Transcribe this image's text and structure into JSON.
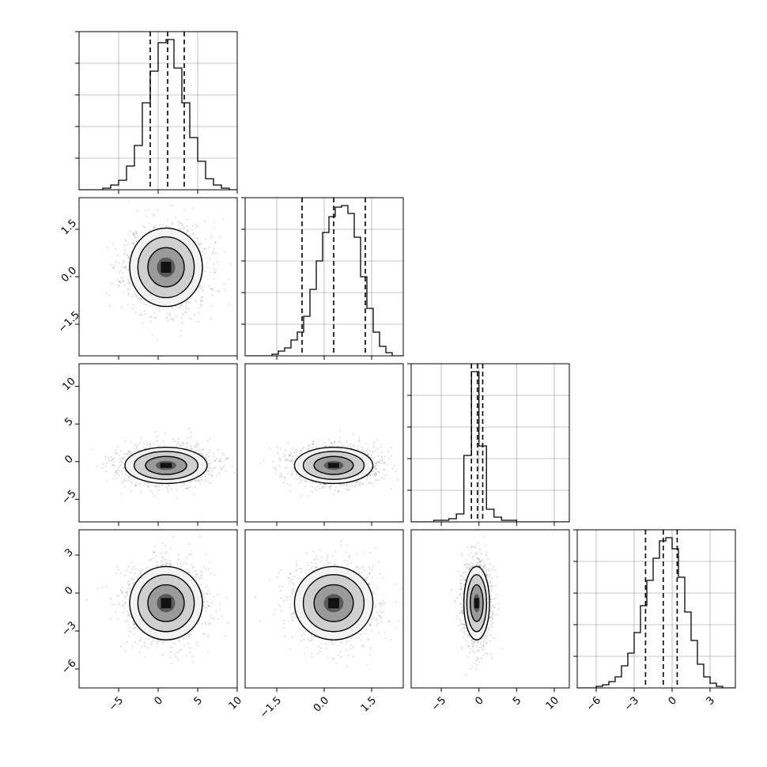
{
  "chart_data": {
    "type": "corner",
    "parameters": 4,
    "grid": true,
    "panels": [
      {
        "kind": "histogram",
        "row": 0,
        "col": 0,
        "x": [
          -9.5,
          -8.5,
          -7.5,
          -6.5,
          -5.5,
          -4.5,
          -3.5,
          -2.5,
          -1.5,
          -0.5,
          0.5,
          1.5,
          2.5,
          3.5,
          4.5,
          5.5,
          6.5,
          7.5,
          8.5,
          9.5
        ],
        "values": [
          0,
          0,
          0,
          1,
          3,
          6,
          15,
          28,
          55,
          75,
          93,
          95,
          77,
          55,
          33,
          18,
          7,
          3,
          1,
          0
        ],
        "quantiles": [
          -1.0,
          1.2,
          3.3
        ],
        "xlim": [
          -10,
          10
        ],
        "ylim": [
          0,
          100
        ],
        "yticks": [
          20,
          40,
          60,
          80,
          100
        ]
      },
      {
        "kind": "histogram",
        "row": 1,
        "col": 1,
        "x": [
          -2.35,
          -2.15,
          -1.95,
          -1.75,
          -1.55,
          -1.35,
          -1.15,
          -0.95,
          -0.75,
          -0.55,
          -0.35,
          -0.15,
          0.05,
          0.25,
          0.45,
          0.65,
          0.85,
          1.05,
          1.25,
          1.45,
          1.65,
          1.85,
          2.05,
          2.25,
          2.45
        ],
        "values": [
          0,
          0,
          0,
          0,
          1,
          3,
          5,
          10,
          15,
          25,
          42,
          60,
          78,
          88,
          94,
          95,
          90,
          75,
          50,
          30,
          15,
          6,
          2,
          0,
          0
        ],
        "quantiles": [
          -0.7,
          0.3,
          1.3
        ],
        "xlim": [
          -2.5,
          2.5
        ],
        "ylim": [
          0,
          100
        ],
        "yticks": [
          20,
          40,
          60,
          80,
          100
        ]
      },
      {
        "kind": "histogram",
        "row": 2,
        "col": 2,
        "x": [
          -8.5,
          -7.5,
          -6.5,
          -5.5,
          -4.5,
          -3.5,
          -2.5,
          -1.5,
          -0.5,
          0.5,
          1.5,
          2.5,
          3.5,
          4.5,
          5.5,
          6.5,
          7.5,
          8.5,
          9.5,
          10.5,
          11.5
        ],
        "values": [
          0,
          0,
          0,
          1,
          1,
          2,
          5,
          42,
          95,
          48,
          8,
          3,
          1,
          1,
          0,
          0,
          0,
          0,
          0,
          0,
          0
        ],
        "quantiles": [
          -1.0,
          -0.2,
          0.5
        ],
        "xlim": [
          -9,
          12
        ],
        "ylim": [
          0,
          100
        ],
        "yticks": [
          20,
          40,
          60,
          80,
          100
        ]
      },
      {
        "kind": "histogram",
        "row": 3,
        "col": 3,
        "x": [
          -7.25,
          -6.75,
          -6.25,
          -5.75,
          -5.25,
          -4.75,
          -4.25,
          -3.75,
          -3.25,
          -2.75,
          -2.25,
          -1.75,
          -1.25,
          -0.75,
          -0.25,
          0.25,
          0.75,
          1.25,
          1.75,
          2.25,
          2.75,
          3.25,
          3.75,
          4.25,
          4.75
        ],
        "values": [
          0,
          0,
          0,
          1,
          2,
          4,
          7,
          14,
          22,
          35,
          52,
          68,
          82,
          93,
          95,
          88,
          70,
          48,
          30,
          15,
          7,
          3,
          1,
          0,
          0
        ],
        "quantiles": [
          -2.1,
          -0.7,
          0.4
        ],
        "xlim": [
          -7.5,
          5
        ],
        "ylim": [
          0,
          100
        ],
        "yticks": [
          20,
          40,
          60,
          80,
          100
        ]
      },
      {
        "kind": "density",
        "row": 1,
        "col": 0,
        "center": [
          1.0,
          0.3
        ],
        "sigma": [
          2.3,
          0.62
        ],
        "xlim": [
          -10,
          10
        ],
        "ylim": [
          -2.5,
          2.5
        ],
        "points": 1300,
        "seed": 11
      },
      {
        "kind": "density",
        "row": 2,
        "col": 0,
        "center": [
          1.0,
          -0.5
        ],
        "sigma": [
          2.6,
          1.2
        ],
        "xlim": [
          -10,
          10
        ],
        "ylim": [
          -8,
          13
        ],
        "points": 1300,
        "seed": 23
      },
      {
        "kind": "density",
        "row": 2,
        "col": 1,
        "center": [
          0.3,
          -0.5
        ],
        "sigma": [
          0.62,
          1.2
        ],
        "xlim": [
          -2.5,
          2.5
        ],
        "ylim": [
          -8,
          13
        ],
        "points": 1300,
        "seed": 37
      },
      {
        "kind": "density",
        "row": 3,
        "col": 0,
        "center": [
          1.0,
          -0.8
        ],
        "sigma": [
          2.3,
          1.45
        ],
        "xlim": [
          -10,
          10
        ],
        "ylim": [
          -7.5,
          5
        ],
        "points": 1300,
        "seed": 41
      },
      {
        "kind": "density",
        "row": 3,
        "col": 1,
        "center": [
          0.3,
          -0.8
        ],
        "sigma": [
          0.62,
          1.45
        ],
        "xlim": [
          -2.5,
          2.5
        ],
        "ylim": [
          -7.5,
          5
        ],
        "points": 1300,
        "seed": 53
      },
      {
        "kind": "density",
        "row": 3,
        "col": 2,
        "center": [
          -0.3,
          -0.8
        ],
        "sigma": [
          0.85,
          1.45
        ],
        "xlim": [
          -9,
          12
        ],
        "ylim": [
          -7.5,
          5
        ],
        "points": 1300,
        "seed": 67
      }
    ],
    "axis_ticks": {
      "x": [
        {
          "col": 0,
          "ticks": [
            -5,
            0,
            5,
            10
          ],
          "labels": [
            "−5",
            "0",
            "5",
            "10"
          ]
        },
        {
          "col": 1,
          "ticks": [
            -1.5,
            0.0,
            1.5
          ],
          "labels": [
            "−1.5",
            "0.0",
            "1.5"
          ]
        },
        {
          "col": 2,
          "ticks": [
            -5,
            0,
            5,
            10
          ],
          "labels": [
            "−5",
            "0",
            "5",
            "10"
          ]
        },
        {
          "col": 3,
          "ticks": [
            -6,
            -3,
            0,
            3
          ],
          "labels": [
            "−6",
            "−3",
            "0",
            "3"
          ]
        }
      ],
      "y": [
        {
          "row": 1,
          "ticks": [
            -1.5,
            0.0,
            1.5
          ],
          "labels": [
            "−1.5",
            "0.0",
            "1.5"
          ]
        },
        {
          "row": 2,
          "ticks": [
            -5,
            0,
            5,
            10
          ],
          "labels": [
            "−5",
            "0",
            "5",
            "10"
          ]
        },
        {
          "row": 3,
          "ticks": [
            -6,
            -3,
            0,
            3
          ],
          "labels": [
            "−6",
            "−3",
            "0",
            "3"
          ]
        }
      ]
    }
  }
}
